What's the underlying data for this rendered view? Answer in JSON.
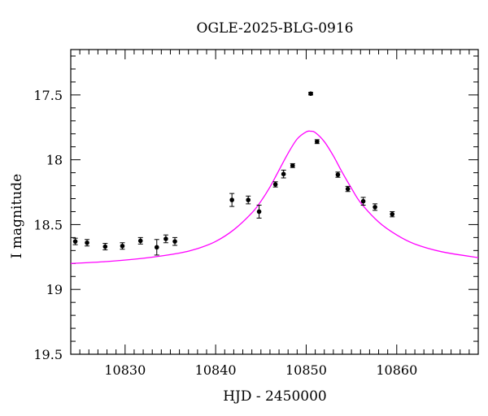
{
  "chart_data": {
    "type": "scatter",
    "title": "OGLE-2025-BLG-0916",
    "xlabel": "HJD - 2450000",
    "ylabel": "I magnitude",
    "xlim": [
      10824,
      10869
    ],
    "ylim": [
      19.5,
      17.15
    ],
    "y_inverted": true,
    "grid": false,
    "x_ticks_major": [
      10830,
      10840,
      10850,
      10860
    ],
    "x_tick_labels": [
      "10830",
      "10840",
      "10850",
      "10860"
    ],
    "x_minor_step": 1,
    "y_ticks_major": [
      17.5,
      18,
      18.5,
      19,
      19.5
    ],
    "y_tick_labels": [
      "17.5",
      "18",
      "18.5",
      "19",
      "19.5"
    ],
    "y_minor_step": 0.1,
    "colors": {
      "points": "#000000",
      "model": "#ff00ff",
      "frame": "#000000"
    },
    "observations": [
      {
        "x": 10824.5,
        "y": 18.63,
        "err": 0.025
      },
      {
        "x": 10825.8,
        "y": 18.64,
        "err": 0.025
      },
      {
        "x": 10827.8,
        "y": 18.67,
        "err": 0.025
      },
      {
        "x": 10829.7,
        "y": 18.665,
        "err": 0.025
      },
      {
        "x": 10831.7,
        "y": 18.625,
        "err": 0.025
      },
      {
        "x": 10833.5,
        "y": 18.675,
        "err": 0.06
      },
      {
        "x": 10834.5,
        "y": 18.61,
        "err": 0.03
      },
      {
        "x": 10835.5,
        "y": 18.63,
        "err": 0.03
      },
      {
        "x": 10841.8,
        "y": 18.31,
        "err": 0.05
      },
      {
        "x": 10843.6,
        "y": 18.31,
        "err": 0.03
      },
      {
        "x": 10844.8,
        "y": 18.4,
        "err": 0.05
      },
      {
        "x": 10846.6,
        "y": 18.19,
        "err": 0.02
      },
      {
        "x": 10847.5,
        "y": 18.11,
        "err": 0.03
      },
      {
        "x": 10848.5,
        "y": 18.045,
        "err": 0.015
      },
      {
        "x": 10850.5,
        "y": 17.49,
        "err": 0.01
      },
      {
        "x": 10851.2,
        "y": 17.86,
        "err": 0.015
      },
      {
        "x": 10853.5,
        "y": 18.115,
        "err": 0.02
      },
      {
        "x": 10854.6,
        "y": 18.225,
        "err": 0.02
      },
      {
        "x": 10856.3,
        "y": 18.32,
        "err": 0.03
      },
      {
        "x": 10857.6,
        "y": 18.365,
        "err": 0.025
      },
      {
        "x": 10859.5,
        "y": 18.42,
        "err": 0.02
      }
    ],
    "model": {
      "x": [
        10824,
        10828,
        10832,
        10836,
        10838,
        10840,
        10842,
        10844,
        10845,
        10846,
        10847,
        10848,
        10849,
        10850,
        10850.5,
        10851,
        10852,
        10853,
        10854,
        10855,
        10856,
        10858,
        10860,
        10862,
        10865,
        10869
      ],
      "y": [
        18.8,
        18.785,
        18.76,
        18.72,
        18.685,
        18.63,
        18.54,
        18.41,
        18.32,
        18.21,
        18.08,
        17.95,
        17.84,
        17.785,
        17.78,
        17.79,
        17.86,
        17.97,
        18.1,
        18.22,
        18.33,
        18.48,
        18.58,
        18.65,
        18.71,
        18.755
      ]
    }
  }
}
